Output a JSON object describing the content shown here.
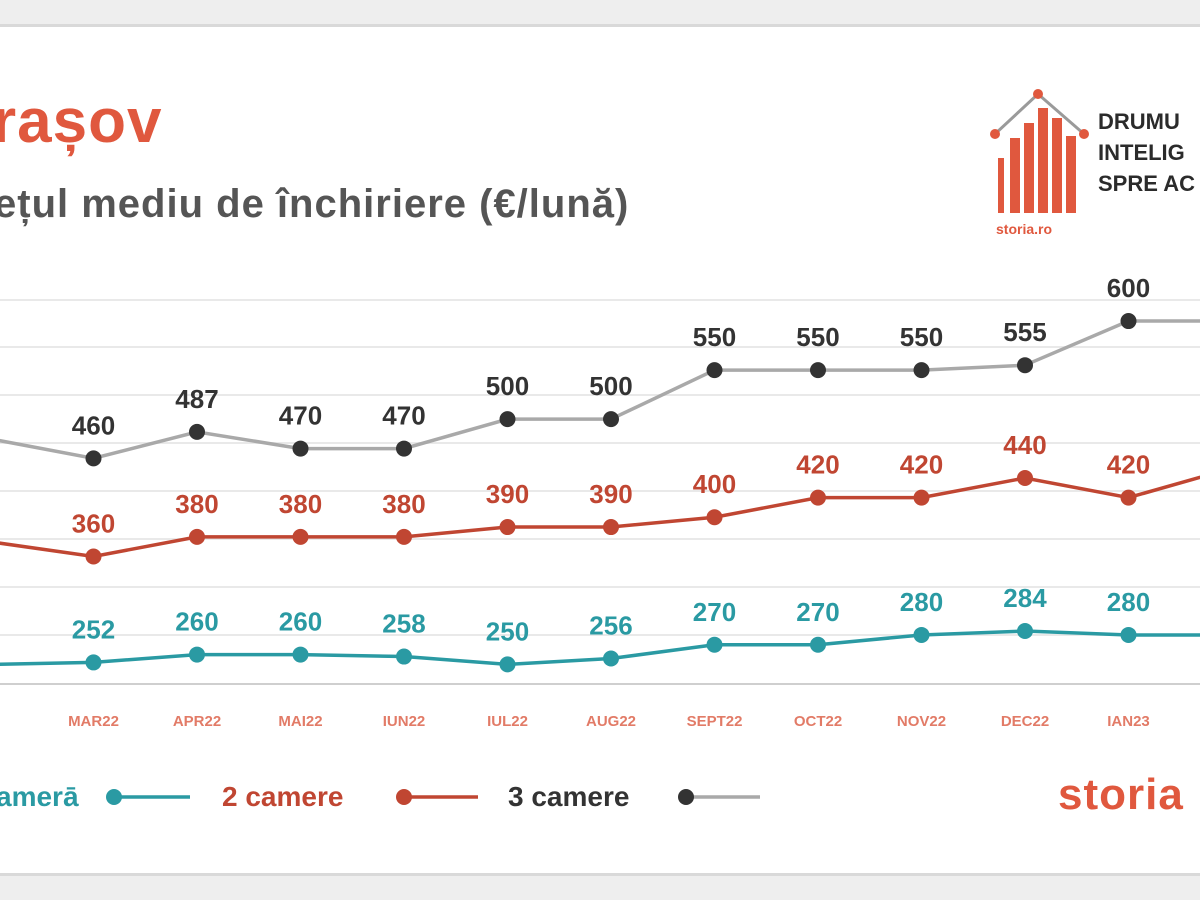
{
  "header": {
    "title": "rașov",
    "subtitle": "ețul mediu de închiriere (€/lună)"
  },
  "logo": {
    "tagline": [
      "DRUMU",
      "INTELIG",
      "SPRE AC"
    ],
    "sub": "storia.ro",
    "icon": "house-bars-icon"
  },
  "brand": "storia",
  "colors": {
    "one_room": "#2a9aa3",
    "two_rooms": "#c04632",
    "three_rooms": "#333333",
    "three_rooms_line": "#a9a9a9",
    "accent": "#e0583e",
    "tick": "#e27b67"
  },
  "chart_data": {
    "type": "line",
    "title": "rașov",
    "subtitle": "ețul mediu de închiriere (€/lună)",
    "categories": [
      "22",
      "MAR22",
      "APR22",
      "MAI22",
      "IUN22",
      "IUL22",
      "AUG22",
      "SEPT22",
      "OCT22",
      "NOV22",
      "DEC22",
      "IAN23",
      ""
    ],
    "series": [
      {
        "name": "amerā",
        "labels": [
          "0",
          "252",
          "260",
          "260",
          "258",
          "250",
          "256",
          "270",
          "270",
          "280",
          "284",
          "280",
          ""
        ],
        "values": [
          250,
          252,
          260,
          260,
          258,
          250,
          256,
          270,
          270,
          280,
          284,
          280,
          280
        ]
      },
      {
        "name": "2 camere",
        "labels": [
          "5",
          "360",
          "380",
          "380",
          "380",
          "390",
          "390",
          "400",
          "420",
          "420",
          "440",
          "420",
          ""
        ],
        "values": [
          375,
          360,
          380,
          380,
          380,
          390,
          390,
          400,
          420,
          420,
          440,
          420,
          450
        ]
      },
      {
        "name": "3 camere",
        "labels": [
          "0",
          "460",
          "487",
          "470",
          "470",
          "500",
          "500",
          "550",
          "550",
          "550",
          "555",
          "600",
          ""
        ],
        "values": [
          480,
          460,
          487,
          470,
          470,
          500,
          500,
          550,
          550,
          550,
          555,
          600,
          600
        ]
      }
    ],
    "ylim": [
      230,
      650
    ],
    "grid": true,
    "legend_position": "bottom-left"
  }
}
